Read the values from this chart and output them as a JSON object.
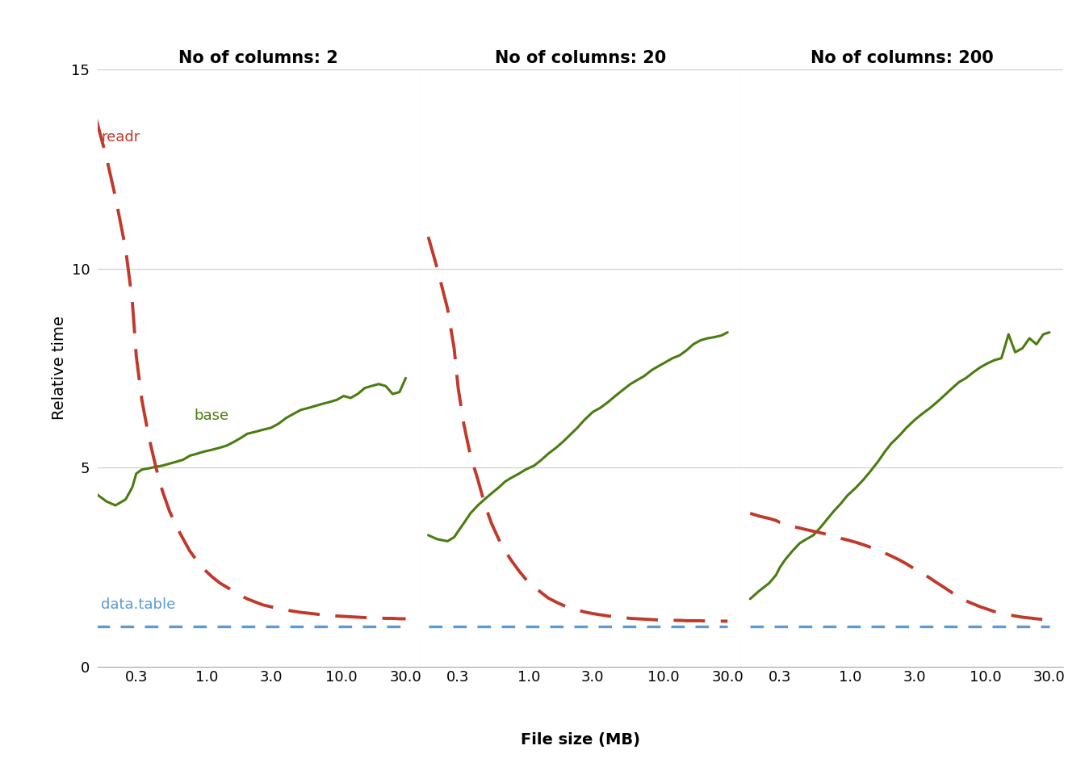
{
  "facets": [
    "No of columns: 2",
    "No of columns: 20",
    "No of columns: 200"
  ],
  "x_tick_labels": [
    "0.3",
    "1.0",
    "3.0",
    "10.0",
    "30.0"
  ],
  "x_tick_vals": [
    0.3,
    1.0,
    3.0,
    10.0,
    30.0
  ],
  "ylim": [
    0,
    15
  ],
  "y_ticks": [
    0,
    5,
    10,
    15
  ],
  "ylabel": "Relative time",
  "xlabel": "File size (MB)",
  "title_fontsize": 15,
  "label_fontsize": 14,
  "tick_fontsize": 13,
  "base_color": "#4a7c10",
  "readr_color": "#c0392b",
  "datatable_color": "#5b9bd5",
  "background_color": "#ffffff",
  "grid_color": "#d0d0d0",
  "readr_label_color": "#c0392b",
  "base_label_color": "#4a7c10",
  "datatable_label_color": "#5b9bd5",
  "facet_data": {
    "2": {
      "x": [
        0.15,
        0.18,
        0.21,
        0.25,
        0.28,
        0.3,
        0.33,
        0.37,
        0.42,
        0.47,
        0.53,
        0.6,
        0.67,
        0.75,
        0.85,
        0.95,
        1.1,
        1.25,
        1.4,
        1.6,
        1.8,
        2.0,
        2.3,
        2.6,
        3.0,
        3.4,
        3.9,
        4.4,
        5.0,
        5.7,
        6.4,
        7.2,
        8.2,
        9.2,
        10.4,
        11.7,
        13.2,
        14.9,
        16.7,
        18.9,
        21.3,
        24.0,
        27.0,
        30.0
      ],
      "base": [
        4.35,
        4.15,
        4.05,
        4.2,
        4.5,
        4.85,
        4.95,
        4.98,
        5.02,
        5.05,
        5.1,
        5.15,
        5.2,
        5.3,
        5.35,
        5.4,
        5.45,
        5.5,
        5.55,
        5.65,
        5.75,
        5.85,
        5.9,
        5.95,
        6.0,
        6.1,
        6.25,
        6.35,
        6.45,
        6.5,
        6.55,
        6.6,
        6.65,
        6.7,
        6.8,
        6.75,
        6.85,
        7.0,
        7.05,
        7.1,
        7.05,
        6.85,
        6.9,
        7.25
      ],
      "readr": [
        13.8,
        12.8,
        11.8,
        10.5,
        9.2,
        7.8,
        6.7,
        5.8,
        5.0,
        4.4,
        3.9,
        3.5,
        3.2,
        2.9,
        2.65,
        2.45,
        2.25,
        2.1,
        2.0,
        1.88,
        1.78,
        1.7,
        1.62,
        1.55,
        1.5,
        1.46,
        1.42,
        1.39,
        1.36,
        1.34,
        1.32,
        1.3,
        1.28,
        1.27,
        1.26,
        1.25,
        1.24,
        1.23,
        1.22,
        1.22,
        1.21,
        1.21,
        1.2,
        1.2
      ],
      "datatable": [
        1.0,
        1.0,
        1.0,
        1.0,
        1.0,
        1.0,
        1.0,
        1.0,
        1.0,
        1.0,
        1.0,
        1.0,
        1.0,
        1.0,
        1.0,
        1.0,
        1.0,
        1.0,
        1.0,
        1.0,
        1.0,
        1.0,
        1.0,
        1.0,
        1.0,
        1.0,
        1.0,
        1.0,
        1.0,
        1.0,
        1.0,
        1.0,
        1.0,
        1.0,
        1.0,
        1.0,
        1.0,
        1.0,
        1.0,
        1.0,
        1.0,
        1.0,
        1.0,
        1.0
      ]
    },
    "20": {
      "x": [
        0.18,
        0.21,
        0.25,
        0.28,
        0.3,
        0.33,
        0.37,
        0.42,
        0.47,
        0.53,
        0.6,
        0.67,
        0.75,
        0.85,
        0.95,
        1.1,
        1.25,
        1.4,
        1.6,
        1.8,
        2.0,
        2.3,
        2.6,
        3.0,
        3.4,
        3.9,
        4.4,
        5.0,
        5.7,
        6.4,
        7.2,
        8.2,
        9.2,
        10.4,
        11.7,
        13.2,
        14.9,
        16.7,
        18.9,
        21.3,
        24.0,
        27.0,
        30.0
      ],
      "base": [
        3.3,
        3.2,
        3.15,
        3.25,
        3.4,
        3.6,
        3.85,
        4.05,
        4.2,
        4.35,
        4.5,
        4.65,
        4.75,
        4.85,
        4.95,
        5.05,
        5.2,
        5.35,
        5.5,
        5.65,
        5.8,
        6.0,
        6.2,
        6.4,
        6.5,
        6.65,
        6.8,
        6.95,
        7.1,
        7.2,
        7.3,
        7.45,
        7.55,
        7.65,
        7.75,
        7.82,
        7.95,
        8.1,
        8.2,
        8.25,
        8.28,
        8.32,
        8.4
      ],
      "readr": [
        10.8,
        10.0,
        9.0,
        8.0,
        7.0,
        6.1,
        5.3,
        4.7,
        4.1,
        3.6,
        3.2,
        2.9,
        2.65,
        2.4,
        2.2,
        2.0,
        1.85,
        1.72,
        1.62,
        1.54,
        1.47,
        1.42,
        1.37,
        1.33,
        1.3,
        1.27,
        1.25,
        1.23,
        1.21,
        1.2,
        1.19,
        1.18,
        1.17,
        1.17,
        1.16,
        1.16,
        1.15,
        1.15,
        1.15,
        1.14,
        1.14,
        1.14,
        1.14
      ],
      "datatable": [
        1.0,
        1.0,
        1.0,
        1.0,
        1.0,
        1.0,
        1.0,
        1.0,
        1.0,
        1.0,
        1.0,
        1.0,
        1.0,
        1.0,
        1.0,
        1.0,
        1.0,
        1.0,
        1.0,
        1.0,
        1.0,
        1.0,
        1.0,
        1.0,
        1.0,
        1.0,
        1.0,
        1.0,
        1.0,
        1.0,
        1.0,
        1.0,
        1.0,
        1.0,
        1.0,
        1.0,
        1.0,
        1.0,
        1.0,
        1.0,
        1.0,
        1.0,
        1.0
      ]
    },
    "200": {
      "x": [
        0.18,
        0.21,
        0.25,
        0.28,
        0.3,
        0.33,
        0.37,
        0.42,
        0.47,
        0.53,
        0.6,
        0.67,
        0.75,
        0.85,
        0.95,
        1.1,
        1.25,
        1.4,
        1.6,
        1.8,
        2.0,
        2.3,
        2.6,
        3.0,
        3.4,
        3.9,
        4.4,
        5.0,
        5.7,
        6.4,
        7.2,
        8.2,
        9.2,
        10.4,
        11.7,
        13.2,
        14.9,
        16.7,
        18.9,
        21.3,
        24.0,
        27.0,
        30.0
      ],
      "base": [
        1.7,
        1.9,
        2.1,
        2.3,
        2.5,
        2.7,
        2.9,
        3.1,
        3.2,
        3.3,
        3.5,
        3.7,
        3.9,
        4.1,
        4.3,
        4.5,
        4.7,
        4.9,
        5.15,
        5.4,
        5.6,
        5.8,
        6.0,
        6.2,
        6.35,
        6.5,
        6.65,
        6.82,
        7.0,
        7.15,
        7.25,
        7.4,
        7.52,
        7.62,
        7.7,
        7.75,
        8.35,
        7.9,
        8.0,
        8.25,
        8.1,
        8.35,
        8.4
      ],
      "readr": [
        3.85,
        3.78,
        3.72,
        3.67,
        3.62,
        3.58,
        3.52,
        3.48,
        3.44,
        3.4,
        3.36,
        3.32,
        3.28,
        3.22,
        3.18,
        3.12,
        3.06,
        3.0,
        2.93,
        2.85,
        2.78,
        2.68,
        2.58,
        2.45,
        2.35,
        2.22,
        2.1,
        1.98,
        1.85,
        1.75,
        1.65,
        1.57,
        1.5,
        1.44,
        1.38,
        1.34,
        1.3,
        1.27,
        1.24,
        1.22,
        1.2,
        1.18,
        1.16
      ],
      "datatable": [
        1.0,
        1.0,
        1.0,
        1.0,
        1.0,
        1.0,
        1.0,
        1.0,
        1.0,
        1.0,
        1.0,
        1.0,
        1.0,
        1.0,
        1.0,
        1.0,
        1.0,
        1.0,
        1.0,
        1.0,
        1.0,
        1.0,
        1.0,
        1.0,
        1.0,
        1.0,
        1.0,
        1.0,
        1.0,
        1.0,
        1.0,
        1.0,
        1.0,
        1.0,
        1.0,
        1.0,
        1.0,
        1.0,
        1.0,
        1.0,
        1.0,
        1.0,
        1.0
      ]
    }
  }
}
